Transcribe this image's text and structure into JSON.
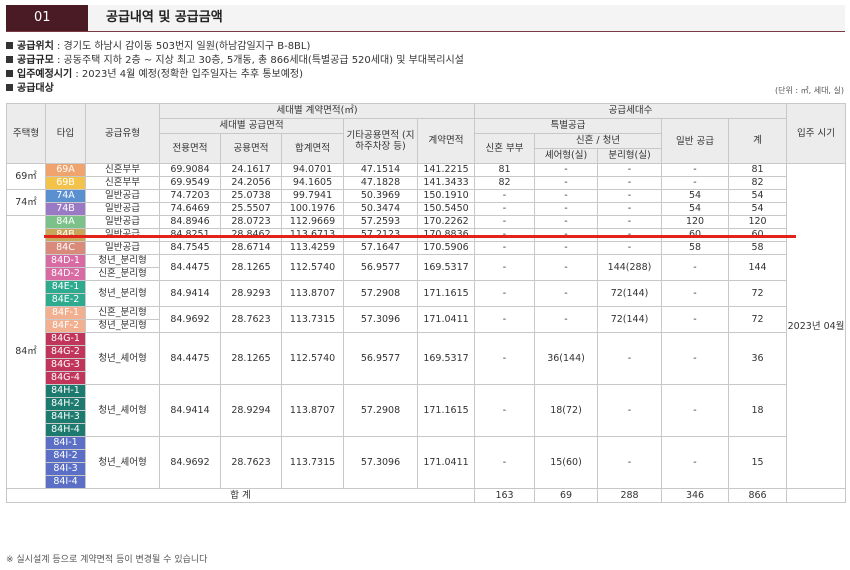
{
  "header": {
    "number": "01",
    "title": "공급내역 및 공급금액"
  },
  "info": [
    {
      "label": "공급위치",
      "text": " : 경기도 하남시 감이동 503번지 일원(하남감일지구 B-8BL)"
    },
    {
      "label": "공급규모",
      "text": " : 공동주택 지하 2층 ~ 지상 최고 30층, 5개동, 총 866세대(특별공급 520세대) 및 부대복리시설"
    },
    {
      "label": "입주예정시기",
      "text": " : 2023년 4월 예정(정확한 입주일자는 추후 통보예정)"
    },
    {
      "label": "공급대상",
      "text": ""
    }
  ],
  "unit_note": "(단위 : ㎡, 세대, 실)",
  "table": {
    "headers": {
      "housing_type": "주택형",
      "type": "타입",
      "supply_type": "공급유형",
      "area_group": "세대별 계약면적(㎡)",
      "supply_area": "세대별 공급면적",
      "exclusive": "전용면적",
      "common": "공용면적",
      "total_area": "합계면적",
      "other_common": "기타공용면적 (지하주차장 등)",
      "contract_area": "계약면적",
      "units_group": "공급세대수",
      "special": "특별공급",
      "newlywed": "신혼 부부",
      "newlywed_youth": "신혼 / 청년",
      "share_type": "셰어형(실)",
      "separate_type": "분리형(실)",
      "general": "일반 공급",
      "total": "계",
      "move_in": "입주 시기"
    },
    "housing_types": {
      "t69": "69㎡",
      "t74": "74㎡",
      "t84": "84㎡"
    },
    "move_in": "2023년 04월",
    "rows": [
      {
        "types": [
          "69A"
        ],
        "colors": [
          "#f0a36d"
        ],
        "supply": "신혼부부",
        "exclusive": "69.9084",
        "common": "24.1617",
        "sum": "94.0701",
        "other": "47.1514",
        "contract": "141.2215",
        "newlywed": "81",
        "share": "-",
        "separate": "-",
        "general": "-",
        "total": "81"
      },
      {
        "types": [
          "69B"
        ],
        "colors": [
          "#f3c24a"
        ],
        "supply": "신혼부부",
        "exclusive": "69.9549",
        "common": "24.2056",
        "sum": "94.1605",
        "other": "47.1828",
        "contract": "141.3433",
        "newlywed": "82",
        "share": "-",
        "separate": "-",
        "general": "-",
        "total": "82"
      },
      {
        "types": [
          "74A"
        ],
        "colors": [
          "#5a8fd0"
        ],
        "supply": "일반공급",
        "exclusive": "74.7203",
        "common": "25.0738",
        "sum": "99.7941",
        "other": "50.3969",
        "contract": "150.1910",
        "newlywed": "-",
        "share": "-",
        "separate": "-",
        "general": "54",
        "total": "54"
      },
      {
        "types": [
          "74B"
        ],
        "colors": [
          "#9a7ac4"
        ],
        "supply": "일반공급",
        "exclusive": "74.6469",
        "common": "25.5507",
        "sum": "100.1976",
        "other": "50.3474",
        "contract": "150.5450",
        "newlywed": "-",
        "share": "-",
        "separate": "-",
        "general": "54",
        "total": "54"
      },
      {
        "types": [
          "84A"
        ],
        "colors": [
          "#7cc08a"
        ],
        "supply": "일반공급",
        "exclusive": "84.8946",
        "common": "28.0723",
        "sum": "112.9669",
        "other": "57.2593",
        "contract": "170.2262",
        "newlywed": "-",
        "share": "-",
        "separate": "-",
        "general": "120",
        "total": "120"
      },
      {
        "types": [
          "84B"
        ],
        "colors": [
          "#c9a75a"
        ],
        "supply": "일반공급",
        "exclusive": "84.8251",
        "common": "28.8462",
        "sum": "113.6713",
        "other": "57.2123",
        "contract": "170.8836",
        "newlywed": "-",
        "share": "-",
        "separate": "-",
        "general": "60",
        "total": "60"
      },
      {
        "types": [
          "84C"
        ],
        "colors": [
          "#d98a7a"
        ],
        "supply": "일반공급",
        "exclusive": "84.7545",
        "common": "28.6714",
        "sum": "113.4259",
        "other": "57.1647",
        "contract": "170.5906",
        "newlywed": "-",
        "share": "-",
        "separate": "-",
        "general": "58",
        "total": "58"
      },
      {
        "types": [
          "84D-1",
          "84D-2"
        ],
        "colors": [
          "#d86ba3",
          "#d86ba3"
        ],
        "supply": [
          "청년_분리형",
          "신혼_분리형"
        ],
        "exclusive": "84.4475",
        "common": "28.1265",
        "sum": "112.5740",
        "other": "56.9577",
        "contract": "169.5317",
        "newlywed": "-",
        "share": "-",
        "separate": "144(288)",
        "general": "-",
        "total": "144"
      },
      {
        "types": [
          "84E-1",
          "84E-2"
        ],
        "colors": [
          "#2eaa8f",
          "#2eaa8f"
        ],
        "supply": [
          "청년_분리형"
        ],
        "exclusive": "84.9414",
        "common": "28.9293",
        "sum": "113.8707",
        "other": "57.2908",
        "contract": "171.1615",
        "newlywed": "-",
        "share": "-",
        "separate": "72(144)",
        "general": "-",
        "total": "72"
      },
      {
        "types": [
          "84F-1",
          "84F-2"
        ],
        "colors": [
          "#f2b090",
          "#f2b090"
        ],
        "supply": [
          "신혼_분리형",
          "청년_분리형"
        ],
        "exclusive": "84.9692",
        "common": "28.7623",
        "sum": "113.7315",
        "other": "57.3096",
        "contract": "171.0411",
        "newlywed": "-",
        "share": "-",
        "separate": "72(144)",
        "general": "-",
        "total": "72"
      },
      {
        "types": [
          "84G-1",
          "84G-2",
          "84G-3",
          "84G-4"
        ],
        "colors": [
          "#c2355b",
          "#c2355b",
          "#c2355b",
          "#c2355b"
        ],
        "supply": [
          "청년_셰어형"
        ],
        "exclusive": "84.4475",
        "common": "28.1265",
        "sum": "112.5740",
        "other": "56.9577",
        "contract": "169.5317",
        "newlywed": "-",
        "share": "36(144)",
        "separate": "-",
        "general": "-",
        "total": "36"
      },
      {
        "types": [
          "84H-1",
          "84H-2",
          "84H-3",
          "84H-4"
        ],
        "colors": [
          "#1c7a6e",
          "#1c7a6e",
          "#1c7a6e",
          "#1c7a6e"
        ],
        "supply": [
          "청년_셰어형"
        ],
        "exclusive": "84.9414",
        "common": "28.9294",
        "sum": "113.8707",
        "other": "57.2908",
        "contract": "171.1615",
        "newlywed": "-",
        "share": "18(72)",
        "separate": "-",
        "general": "-",
        "total": "18"
      },
      {
        "types": [
          "84I-1",
          "84I-2",
          "84I-3",
          "84I-4"
        ],
        "colors": [
          "#5b6fc7",
          "#5b6fc7",
          "#5b6fc7",
          "#5b6fc7"
        ],
        "supply": [
          "청년_셰어형"
        ],
        "exclusive": "84.9692",
        "common": "28.7623",
        "sum": "113.7315",
        "other": "57.3096",
        "contract": "171.0411",
        "newlywed": "-",
        "share": "15(60)",
        "separate": "-",
        "general": "-",
        "total": "15"
      }
    ],
    "totals": {
      "label": "합 계",
      "newlywed": "163",
      "share": "69",
      "separate": "288",
      "general": "346",
      "total": "866"
    }
  },
  "footnote": "※ 실시설계 등으로 계약면적 등이 변경될 수 있습니다",
  "colors": {
    "header_num_bg": "#4a1b24",
    "highlight_line": "#e2231a"
  }
}
